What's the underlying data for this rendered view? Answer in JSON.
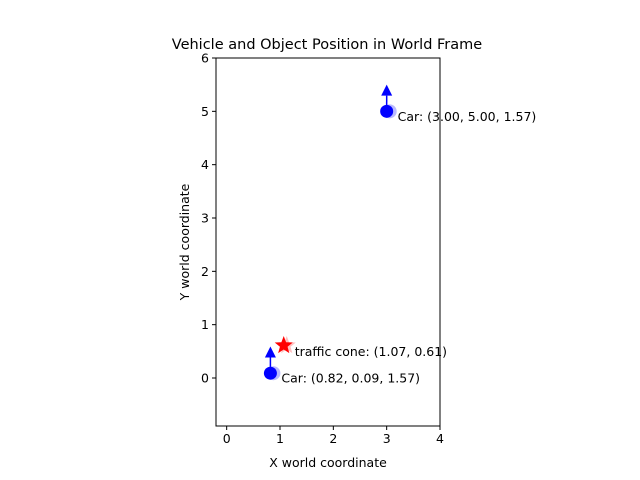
{
  "chart_data": {
    "type": "scatter",
    "title": "Vehicle and Object Position in World Frame",
    "xlabel": "X world coordinate",
    "ylabel": "Y world coordinate",
    "xlim": [
      -0.2,
      4
    ],
    "ylim": [
      -0.9,
      6
    ],
    "xticks": [
      0,
      1,
      2,
      3,
      4
    ],
    "yticks": [
      0,
      1,
      2,
      3,
      4,
      5,
      6
    ],
    "grid": false,
    "points": [
      {
        "kind": "car",
        "x": 0.82,
        "y": 0.09,
        "heading": 1.57,
        "label": "Car: (0.82, 0.09, 1.57)",
        "color": "#0000ff",
        "marker": "circle"
      },
      {
        "kind": "car",
        "x": 3.0,
        "y": 5.0,
        "heading": 1.57,
        "label": "Car: (3.00, 5.00, 1.57)",
        "color": "#0000ff",
        "marker": "circle"
      },
      {
        "kind": "object",
        "x": 1.07,
        "y": 0.61,
        "label": "traffic cone: (1.07, 0.61)",
        "color": "#ff0000",
        "marker": "star"
      }
    ]
  }
}
